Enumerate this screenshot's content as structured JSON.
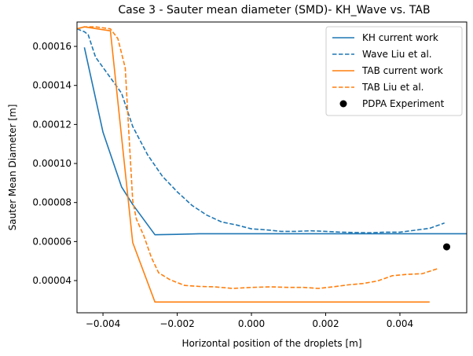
{
  "chart_data": {
    "type": "line",
    "title": "Case 3 - Sauter mean diameter (SMD)- KH_Wave vs. TAB",
    "xlabel": "Horizontal position of the droplets [m]",
    "ylabel": "Sauter Mean Diameter [m]",
    "xlim": [
      -0.0047,
      0.0058
    ],
    "ylim": [
      2.35e-05,
      0.0001725
    ],
    "xticks": [
      -0.004,
      -0.002,
      0.0,
      0.002,
      0.004
    ],
    "xtick_labels": [
      "−0.004",
      "−0.002",
      "0.000",
      "0.002",
      "0.004"
    ],
    "yticks": [
      4e-05,
      6e-05,
      8e-05,
      0.0001,
      0.00012,
      0.00014,
      0.00016
    ],
    "ytick_labels": [
      "0.00004",
      "0.00006",
      "0.00008",
      "0.00010",
      "0.00012",
      "0.00014",
      "0.00016"
    ],
    "grid": false,
    "legend_position": "top-right",
    "series": [
      {
        "name": "KH current work",
        "kind": "line",
        "dash": "solid",
        "color": "#1f77b4",
        "x": [
          -0.0045,
          -0.004,
          -0.0035,
          -0.0032,
          -0.0026,
          -0.002,
          -0.0014,
          0.0,
          0.002,
          0.004,
          0.0058
        ],
        "y": [
          0.0001595,
          0.000116,
          8.8e-05,
          7.9e-05,
          6.35e-05,
          6.37e-05,
          6.4e-05,
          6.4e-05,
          6.4e-05,
          6.4e-05,
          6.4e-05
        ]
      },
      {
        "name": "Wave Liu et al.",
        "kind": "line",
        "dash": "dashed",
        "color": "#1f77b4",
        "x": [
          -0.0047,
          -0.0045,
          -0.0044,
          -0.0042,
          -0.0038,
          -0.0035,
          -0.0032,
          -0.0028,
          -0.0024,
          -0.002,
          -0.0016,
          -0.0012,
          -0.0008,
          -0.0004,
          0.0,
          0.0004,
          0.0008,
          0.0012,
          0.0016,
          0.002,
          0.0024,
          0.0028,
          0.0032,
          0.0036,
          0.004,
          0.0044,
          0.0048,
          0.0052
        ],
        "y": [
          0.000169,
          0.0001675,
          0.000166,
          0.0001545,
          0.000144,
          0.000136,
          0.000119,
          0.0001045,
          9.35e-05,
          8.55e-05,
          7.85e-05,
          7.35e-05,
          7e-05,
          6.85e-05,
          6.65e-05,
          6.6e-05,
          6.52e-05,
          6.52e-05,
          6.55e-05,
          6.52e-05,
          6.48e-05,
          6.46e-05,
          6.45e-05,
          6.48e-05,
          6.48e-05,
          6.58e-05,
          6.68e-05,
          6.95e-05
        ]
      },
      {
        "name": "TAB current work",
        "kind": "line",
        "dash": "solid",
        "color": "#ff7f0e",
        "x": [
          -0.0047,
          -0.0045,
          -0.0038,
          -0.0032,
          -0.0026,
          -0.002,
          0.0,
          0.002,
          0.0048
        ],
        "y": [
          0.000169,
          0.00017,
          0.000168,
          5.95e-05,
          2.9e-05,
          2.9e-05,
          2.9e-05,
          2.9e-05,
          2.9e-05
        ]
      },
      {
        "name": "TAB Liu et al.",
        "kind": "line",
        "dash": "dashed",
        "color": "#ff7f0e",
        "x": [
          -0.0047,
          -0.0045,
          -0.0042,
          -0.0038,
          -0.0036,
          -0.0034,
          -0.0033,
          -0.0032,
          -0.0031,
          -0.0029,
          -0.0027,
          -0.0025,
          -0.0022,
          -0.0018,
          -0.0014,
          -0.001,
          -0.0005,
          0.0,
          0.0005,
          0.001,
          0.0014,
          0.0018,
          0.0022,
          0.0026,
          0.003,
          0.0034,
          0.0038,
          0.0042,
          0.0046,
          0.005
        ],
        "y": [
          0.000169,
          0.00017,
          0.00017,
          0.000169,
          0.000164,
          0.000149,
          0.000115,
          8.1e-05,
          7.15e-05,
          6.3e-05,
          5.2e-05,
          4.4e-05,
          4.05e-05,
          3.75e-05,
          3.7e-05,
          3.68e-05,
          3.6e-05,
          3.65e-05,
          3.68e-05,
          3.65e-05,
          3.65e-05,
          3.6e-05,
          3.68e-05,
          3.78e-05,
          3.85e-05,
          3.98e-05,
          4.25e-05,
          4.32e-05,
          4.35e-05,
          4.6e-05
        ]
      },
      {
        "name": "PDPA Experiment",
        "kind": "scatter",
        "color": "#000000",
        "x": [
          0.00526
        ],
        "y": [
          5.73e-05
        ]
      }
    ]
  }
}
